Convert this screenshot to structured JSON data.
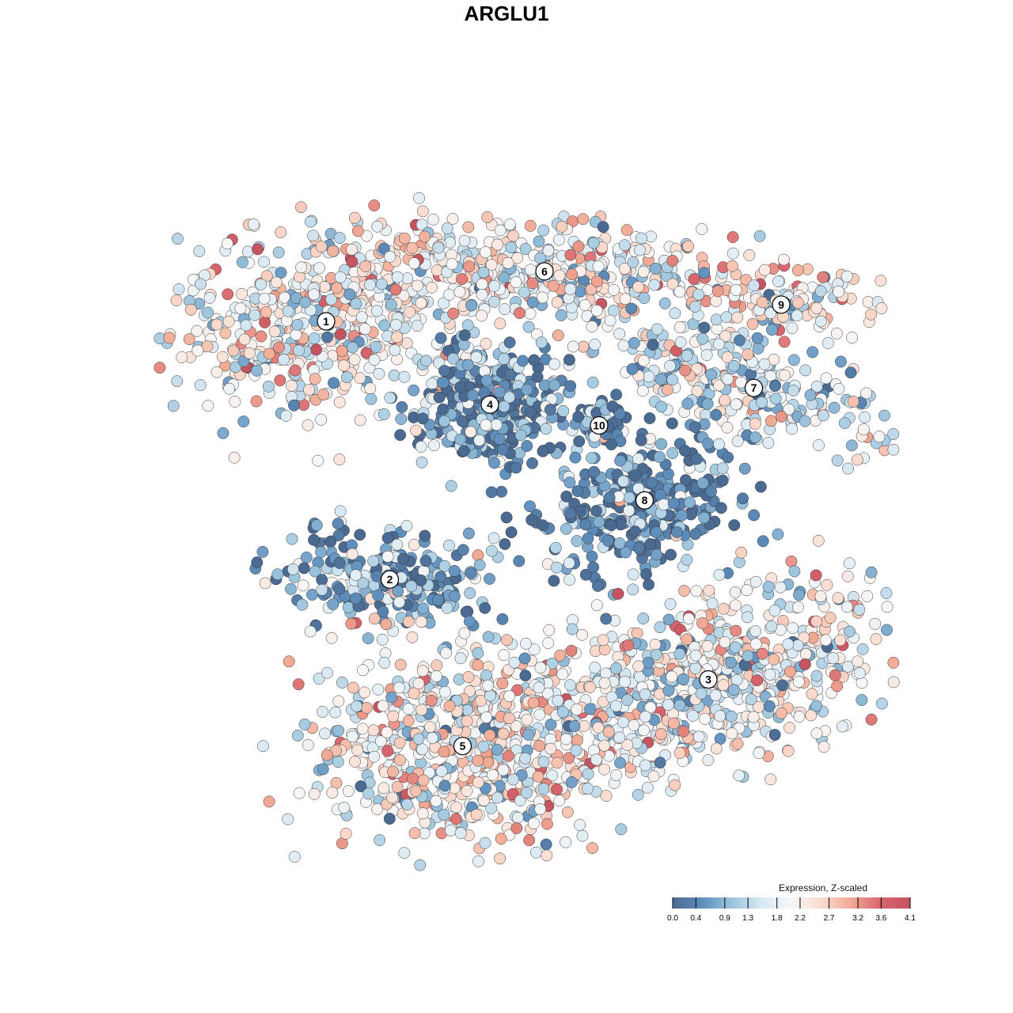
{
  "chart_data": {
    "type": "scatter",
    "title": "ARGLU1",
    "legend": {
      "title": "Expression, Z-scaled",
      "ticks": [
        "0.0",
        "0.4",
        "0.9",
        "1.3",
        "1.8",
        "2.2",
        "2.7",
        "3.2",
        "3.6",
        "4.1"
      ],
      "range": [
        0,
        4.1
      ],
      "placement": "bottom-right",
      "colors": [
        "#4a6a91",
        "#5f8fbd",
        "#9cc5de",
        "#d9e9f3",
        "#f7f7f7",
        "#fbdccf",
        "#f1ab95",
        "#d8646d",
        "#c65460"
      ]
    },
    "clusters": [
      {
        "label": "1",
        "x": -22,
        "y": 21,
        "mean": 2.0
      },
      {
        "label": "6",
        "x": 2,
        "y": 27,
        "mean": 1.9
      },
      {
        "label": "9",
        "x": 28,
        "y": 23,
        "mean": 2.0
      },
      {
        "label": "7",
        "x": 25,
        "y": 13,
        "mean": 1.6
      },
      {
        "label": "4",
        "x": -4,
        "y": 11,
        "mean": 0.6
      },
      {
        "label": "10",
        "x": 8,
        "y": 8.5,
        "mean": 0.7
      },
      {
        "label": "8",
        "x": 13,
        "y": -0.5,
        "mean": 0.4
      },
      {
        "label": "2",
        "x": -15,
        "y": -10,
        "mean": 0.6
      },
      {
        "label": "3",
        "x": 20,
        "y": -22,
        "mean": 1.9
      },
      {
        "label": "5",
        "x": -7,
        "y": -30,
        "mean": 2.0
      }
    ],
    "xlim": [
      -40,
      40
    ],
    "ylim": [
      -44,
      42
    ],
    "grid": false,
    "axes_visible": false
  }
}
